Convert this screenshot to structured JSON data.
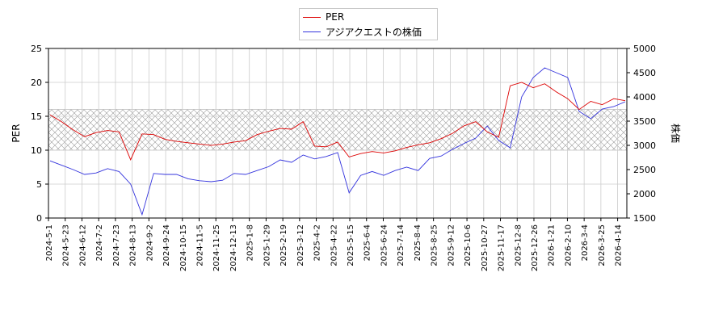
{
  "chart_data": {
    "type": "line",
    "legend": [
      "PER",
      "アジアクエストの株価"
    ],
    "left_axis": {
      "label": "PER",
      "ticks": [
        0,
        5,
        10,
        15,
        20,
        25
      ],
      "ylim": [
        0,
        25
      ]
    },
    "right_axis": {
      "label": "株価",
      "ticks": [
        1500,
        2000,
        2500,
        3000,
        3500,
        4000,
        4500,
        5000
      ],
      "ylim": [
        1500,
        5000
      ]
    },
    "x_ticks": [
      "2024-5-1",
      "2024-5-23",
      "2024-6-12",
      "2024-7-2",
      "2024-7-23",
      "2024-8-13",
      "2024-9-2",
      "2024-9-24",
      "2024-10-15",
      "2024-11-5",
      "2024-11-25",
      "2024-12-13",
      "2025-1-8",
      "2025-1-29",
      "2025-2-19",
      "2025-3-12",
      "2025-4-2",
      "2025-4-22",
      "2025-5-15",
      "2025-6-4",
      "2025-6-24",
      "2025-7-14",
      "2025-8-4",
      "2025-8-25",
      "2025-9-12",
      "2025-10-6",
      "2025-10-27",
      "2025-11-17",
      "2025-12-8",
      "2025-12-26",
      "2026-1-21",
      "2026-2-10",
      "2026-3-4",
      "2026-3-25",
      "2026-4-14"
    ],
    "shaded_band": [
      10,
      16
    ],
    "grid": true,
    "colors": {
      "per": "#dd0000",
      "price": "#3333dd",
      "band": "#999999"
    },
    "series": [
      {
        "name": "PER",
        "axis": "left",
        "values": [
          15.2,
          14.2,
          13.0,
          12.0,
          12.6,
          12.9,
          12.7,
          8.6,
          12.4,
          12.3,
          11.6,
          11.3,
          11.1,
          10.9,
          10.7,
          10.9,
          11.2,
          11.4,
          12.3,
          12.8,
          13.2,
          13.1,
          14.2,
          10.6,
          10.5,
          11.2,
          9.0,
          9.5,
          9.8,
          9.6,
          9.9,
          10.4,
          10.8,
          11.1,
          11.7,
          12.5,
          13.6,
          14.2,
          12.7,
          11.9,
          19.5,
          20.0,
          19.2,
          19.8,
          18.6,
          17.6,
          16.0,
          17.2,
          16.7,
          17.6,
          17.3
        ]
      },
      {
        "name": "アジアクエストの株価",
        "axis": "right",
        "values": [
          2680,
          2590,
          2500,
          2400,
          2430,
          2520,
          2460,
          2200,
          1570,
          2420,
          2400,
          2400,
          2310,
          2270,
          2250,
          2280,
          2420,
          2400,
          2480,
          2560,
          2700,
          2650,
          2800,
          2720,
          2770,
          2850,
          2020,
          2380,
          2460,
          2380,
          2480,
          2550,
          2480,
          2730,
          2780,
          2920,
          3040,
          3150,
          3400,
          3100,
          2950,
          4000,
          4400,
          4600,
          4500,
          4400,
          3700,
          3550,
          3750,
          3800,
          3900
        ]
      }
    ],
    "xlabel": "",
    "ylabel": "PER",
    "y2label": "株価"
  }
}
